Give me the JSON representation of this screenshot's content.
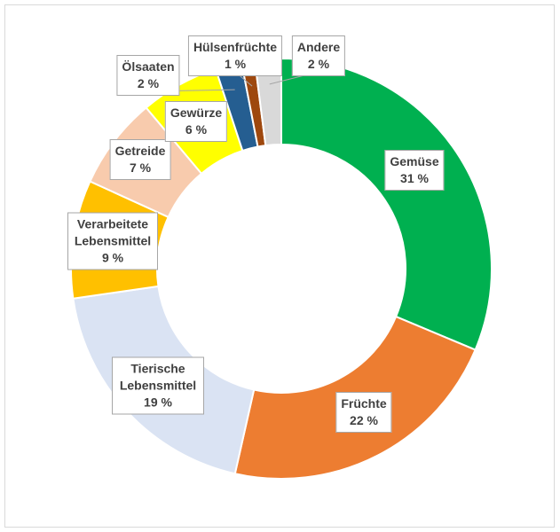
{
  "chart_data": {
    "type": "donut",
    "categories": [
      "Gemüse",
      "Früchte",
      "Tierische Lebensmittel",
      "Verarbeitete Lebensmittel",
      "Getreide",
      "Gewürze",
      "Ölsaaten",
      "Hülsenfrüchte",
      "Andere"
    ],
    "values": [
      31,
      22,
      19,
      9,
      7,
      6,
      2,
      1,
      2
    ],
    "value_labels": [
      "31 %",
      "22 %",
      "19 %",
      "9 %",
      "7 %",
      "6 %",
      "2 %",
      "1 %",
      "2 %"
    ],
    "colors": [
      "#00b050",
      "#ed7d31",
      "#dae3f3",
      "#ffc000",
      "#f8cbad",
      "#ffff00",
      "#255e91",
      "#9e480e",
      "#d9d9d9"
    ]
  }
}
